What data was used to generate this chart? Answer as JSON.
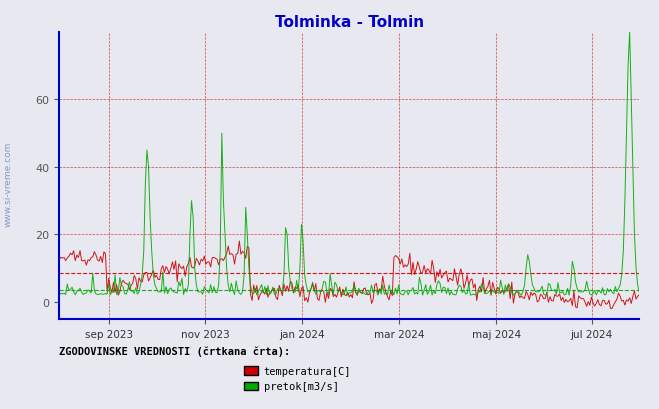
{
  "title": "Tolminka - Tolmin",
  "title_color": "#0000cc",
  "background_color": "#e8e8f0",
  "yticks": [
    0,
    20,
    40,
    60
  ],
  "ylim": [
    -5,
    80
  ],
  "x_tick_labels": [
    "sep 2023",
    "nov 2023",
    "jan 2024",
    "mar 2024",
    "maj 2024",
    "jul 2024"
  ],
  "x_tick_positions": [
    31,
    92,
    153,
    214,
    275,
    335
  ],
  "grid_color": "#cc0000",
  "watermark": "www.si-vreme.com",
  "legend_text": "ZGODOVINSKE VREDNOSTI (črtkana črta):",
  "legend_entries": [
    "temperatura[C]",
    "pretok[m3/s]"
  ],
  "legend_colors": [
    "#cc0000",
    "#00aa00"
  ],
  "axis_color": "#0000cc",
  "temp_color": "#cc0000",
  "flow_color": "#00aa00"
}
